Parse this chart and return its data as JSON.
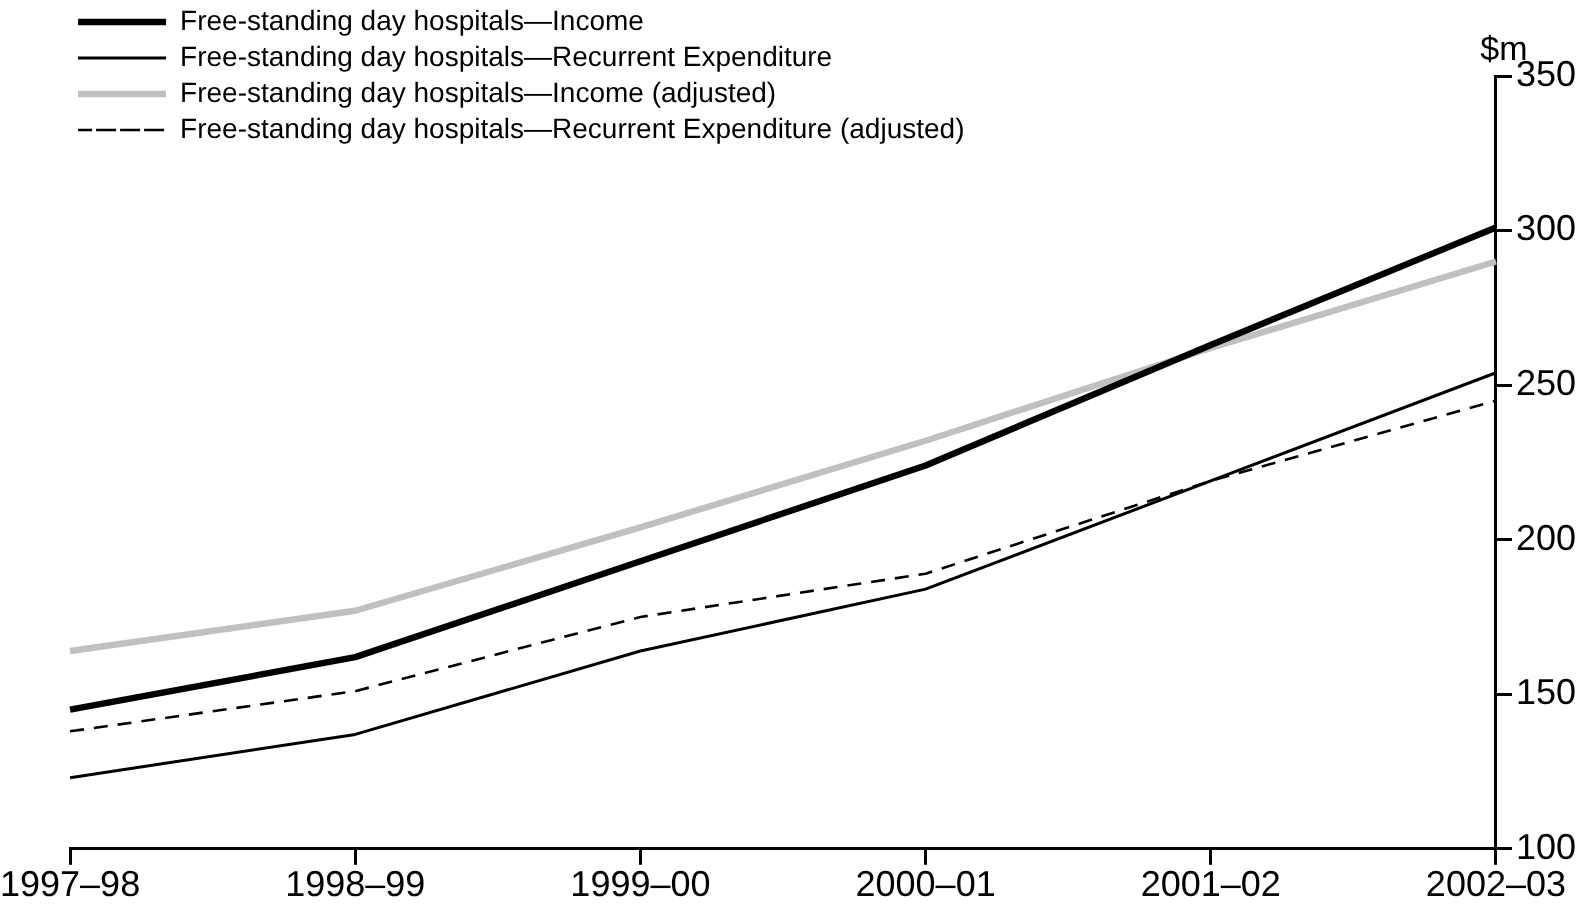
{
  "chart_data": {
    "type": "line",
    "ylabel": "$m",
    "categories": [
      "1997–98",
      "1998–99",
      "1999–00",
      "2000–01",
      "2001–02",
      "2002–03"
    ],
    "series": [
      {
        "name": "Free-standing day hospitals—Income",
        "color": "#000000",
        "values": [
          145,
          162,
          193,
          224,
          263,
          301
        ]
      },
      {
        "name": "Free-standing day hospitals—Recurrent Expenditure",
        "color": "#000000",
        "values": [
          123,
          137,
          164,
          184,
          219,
          254
        ]
      },
      {
        "name": "Free-standing day hospitals—Income (adjusted)",
        "color": "#c0c0c0",
        "values": [
          164,
          177,
          204,
          232,
          262,
          290
        ]
      },
      {
        "name": "Free-standing day hospitals—Recurrent Expenditure (adjusted)",
        "color": "#000000",
        "values": [
          138,
          151,
          175,
          189,
          219,
          245
        ],
        "line_style": "dashed"
      }
    ],
    "ylim": [
      100,
      350
    ],
    "yticks": [
      100,
      150,
      200,
      250,
      300,
      350
    ],
    "grid": false,
    "legend": "top left",
    "marker": "none"
  }
}
